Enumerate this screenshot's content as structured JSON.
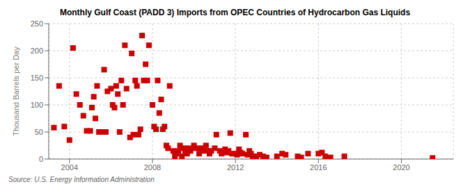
{
  "chart_data": {
    "type": "scatter",
    "title": "Monthly Gulf Coast (PADD 3) Imports from OPEC Countries of Hydrocarbon Gas Liquids",
    "ylabel": "Thousand Barrels per Day",
    "annotations": [
      "Source: U.S. Energy Information Administration"
    ],
    "color": "#cc0000",
    "marker": "square",
    "grid": true,
    "xlim": [
      2003.0,
      2022.5
    ],
    "ylim": [
      0,
      250
    ],
    "yticks": [
      0,
      50,
      100,
      150,
      200,
      250
    ],
    "xticks": [
      2004,
      2008,
      2012,
      2016,
      2020
    ],
    "x": [
      2003.25,
      2003.5,
      2003.75,
      2004.0,
      2004.17,
      2004.33,
      2004.5,
      2004.67,
      2004.83,
      2005.0,
      2005.08,
      2005.17,
      2005.25,
      2005.33,
      2005.42,
      2005.5,
      2005.67,
      2005.75,
      2005.83,
      2006.0,
      2006.08,
      2006.17,
      2006.25,
      2006.33,
      2006.42,
      2006.5,
      2006.58,
      2006.67,
      2006.75,
      2006.92,
      2007.0,
      2007.08,
      2007.17,
      2007.25,
      2007.33,
      2007.42,
      2007.5,
      2007.58,
      2007.67,
      2007.75,
      2007.83,
      2008.0,
      2008.08,
      2008.17,
      2008.25,
      2008.33,
      2008.42,
      2008.5,
      2008.58,
      2008.67,
      2008.75,
      2008.83,
      2009.0,
      2009.08,
      2009.17,
      2009.25,
      2009.33,
      2009.42,
      2009.5,
      2009.58,
      2009.67,
      2009.75,
      2009.83,
      2010.0,
      2010.08,
      2010.25,
      2010.33,
      2010.42,
      2010.58,
      2010.67,
      2010.75,
      2010.83,
      2011.0,
      2011.08,
      2011.25,
      2011.33,
      2011.5,
      2011.58,
      2011.67,
      2011.75,
      2011.83,
      2012.0,
      2012.08,
      2012.17,
      2012.25,
      2012.33,
      2012.5,
      2012.58,
      2012.67,
      2012.75,
      2012.83,
      2013.0,
      2013.17,
      2013.33,
      2013.5,
      2014.0,
      2014.25,
      2014.42,
      2015.0,
      2015.17,
      2015.5,
      2016.0,
      2016.17,
      2016.33,
      2016.58,
      2017.25,
      2021.5
    ],
    "values": [
      58,
      135,
      60,
      35,
      205,
      120,
      100,
      80,
      52,
      52,
      95,
      115,
      75,
      135,
      50,
      50,
      165,
      50,
      125,
      130,
      100,
      95,
      135,
      120,
      50,
      145,
      100,
      210,
      130,
      40,
      195,
      45,
      145,
      135,
      45,
      55,
      228,
      145,
      175,
      145,
      210,
      100,
      60,
      55,
      145,
      85,
      110,
      55,
      60,
      25,
      20,
      135,
      15,
      5,
      10,
      15,
      25,
      5,
      20,
      15,
      10,
      20,
      15,
      25,
      20,
      10,
      20,
      15,
      25,
      15,
      10,
      15,
      20,
      45,
      15,
      10,
      18,
      12,
      15,
      48,
      10,
      10,
      8,
      18,
      12,
      10,
      45,
      8,
      15,
      10,
      5,
      5,
      8,
      5,
      3,
      5,
      10,
      8,
      5,
      3,
      10,
      10,
      12,
      5,
      3,
      5,
      2
    ]
  }
}
